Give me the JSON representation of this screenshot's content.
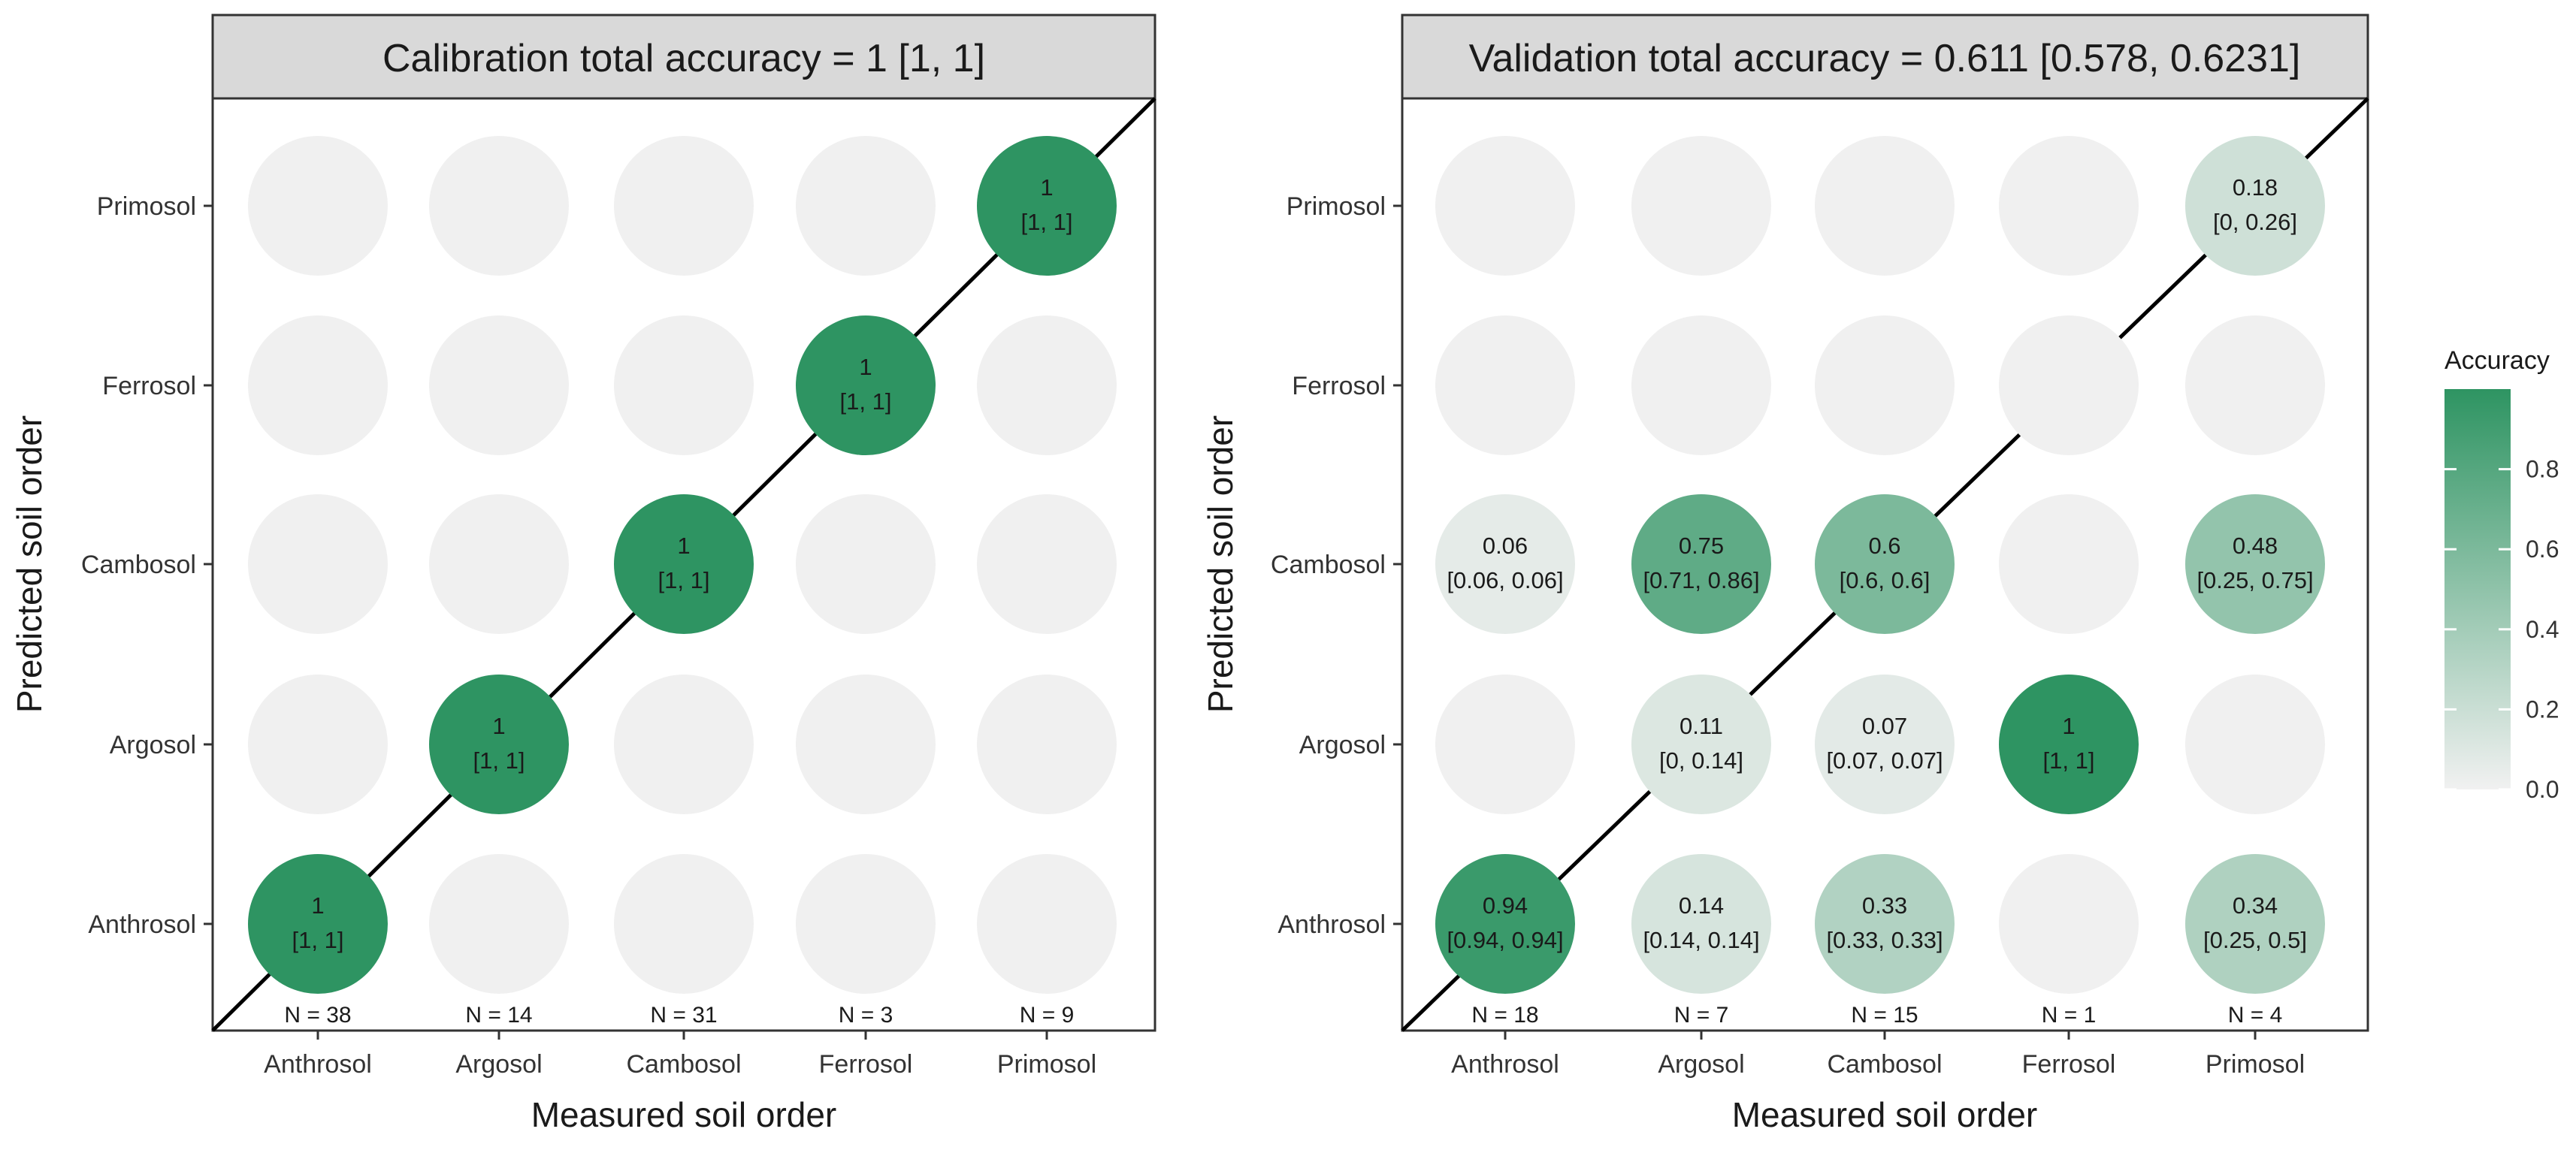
{
  "chart_data": [
    {
      "type": "bubble-confusion-matrix",
      "title": "Calibration total accuracy = 1 [1, 1]",
      "xlabel": "Measured soil order",
      "ylabel": "Predicted soil order",
      "x_categories": [
        "Anthrosol",
        "Argosol",
        "Cambosol",
        "Ferrosol",
        "Primosol"
      ],
      "y_categories": [
        "Anthrosol",
        "Argosol",
        "Cambosol",
        "Ferrosol",
        "Primosol"
      ],
      "n_labels": [
        "N = 38",
        "N = 14",
        "N = 31",
        "N = 3",
        "N = 9"
      ],
      "cells": [
        {
          "x": "Anthrosol",
          "y": "Anthrosol",
          "value": 1,
          "label": "1",
          "ci": "[1, 1]"
        },
        {
          "x": "Argosol",
          "y": "Argosol",
          "value": 1,
          "label": "1",
          "ci": "[1, 1]"
        },
        {
          "x": "Cambosol",
          "y": "Cambosol",
          "value": 1,
          "label": "1",
          "ci": "[1, 1]"
        },
        {
          "x": "Ferrosol",
          "y": "Ferrosol",
          "value": 1,
          "label": "1",
          "ci": "[1, 1]"
        },
        {
          "x": "Primosol",
          "y": "Primosol",
          "value": 1,
          "label": "1",
          "ci": "[1, 1]"
        }
      ]
    },
    {
      "type": "bubble-confusion-matrix",
      "title": "Validation total accuracy = 0.611 [0.578, 0.6231]",
      "xlabel": "Measured soil order",
      "ylabel": "Predicted soil order",
      "x_categories": [
        "Anthrosol",
        "Argosol",
        "Cambosol",
        "Ferrosol",
        "Primosol"
      ],
      "y_categories": [
        "Anthrosol",
        "Argosol",
        "Cambosol",
        "Ferrosol",
        "Primosol"
      ],
      "n_labels": [
        "N = 18",
        "N = 7",
        "N = 15",
        "N = 1",
        "N = 4"
      ],
      "cells": [
        {
          "x": "Anthrosol",
          "y": "Anthrosol",
          "value": 0.94,
          "label": "0.94",
          "ci": "[0.94, 0.94]"
        },
        {
          "x": "Anthrosol",
          "y": "Cambosol",
          "value": 0.06,
          "label": "0.06",
          "ci": "[0.06, 0.06]"
        },
        {
          "x": "Argosol",
          "y": "Anthrosol",
          "value": 0.14,
          "label": "0.14",
          "ci": "[0.14, 0.14]"
        },
        {
          "x": "Argosol",
          "y": "Argosol",
          "value": 0.11,
          "label": "0.11",
          "ci": "[0, 0.14]"
        },
        {
          "x": "Argosol",
          "y": "Cambosol",
          "value": 0.75,
          "label": "0.75",
          "ci": "[0.71, 0.86]"
        },
        {
          "x": "Cambosol",
          "y": "Anthrosol",
          "value": 0.33,
          "label": "0.33",
          "ci": "[0.33, 0.33]"
        },
        {
          "x": "Cambosol",
          "y": "Argosol",
          "value": 0.07,
          "label": "0.07",
          "ci": "[0.07, 0.07]"
        },
        {
          "x": "Cambosol",
          "y": "Cambosol",
          "value": 0.6,
          "label": "0.6",
          "ci": "[0.6, 0.6]"
        },
        {
          "x": "Ferrosol",
          "y": "Argosol",
          "value": 1,
          "label": "1",
          "ci": "[1, 1]"
        },
        {
          "x": "Primosol",
          "y": "Anthrosol",
          "value": 0.34,
          "label": "0.34",
          "ci": "[0.25, 0.5]"
        },
        {
          "x": "Primosol",
          "y": "Cambosol",
          "value": 0.48,
          "label": "0.48",
          "ci": "[0.25, 0.75]"
        },
        {
          "x": "Primosol",
          "y": "Primosol",
          "value": 0.18,
          "label": "0.18",
          "ci": "[0, 0.26]"
        }
      ]
    }
  ],
  "legend": {
    "title": "Accuracy",
    "ticks": [
      "0.0",
      "0.2",
      "0.4",
      "0.6",
      "0.8"
    ],
    "tick_values": [
      0,
      0.2,
      0.4,
      0.6,
      0.8
    ],
    "range": [
      0,
      1
    ]
  },
  "colors": {
    "high": "#2e9462",
    "low": "#f1f1f1",
    "empty": "#f0f0f0",
    "strip_bg": "#d9d9d9",
    "border": "#333333",
    "diagonal": "#000000"
  }
}
